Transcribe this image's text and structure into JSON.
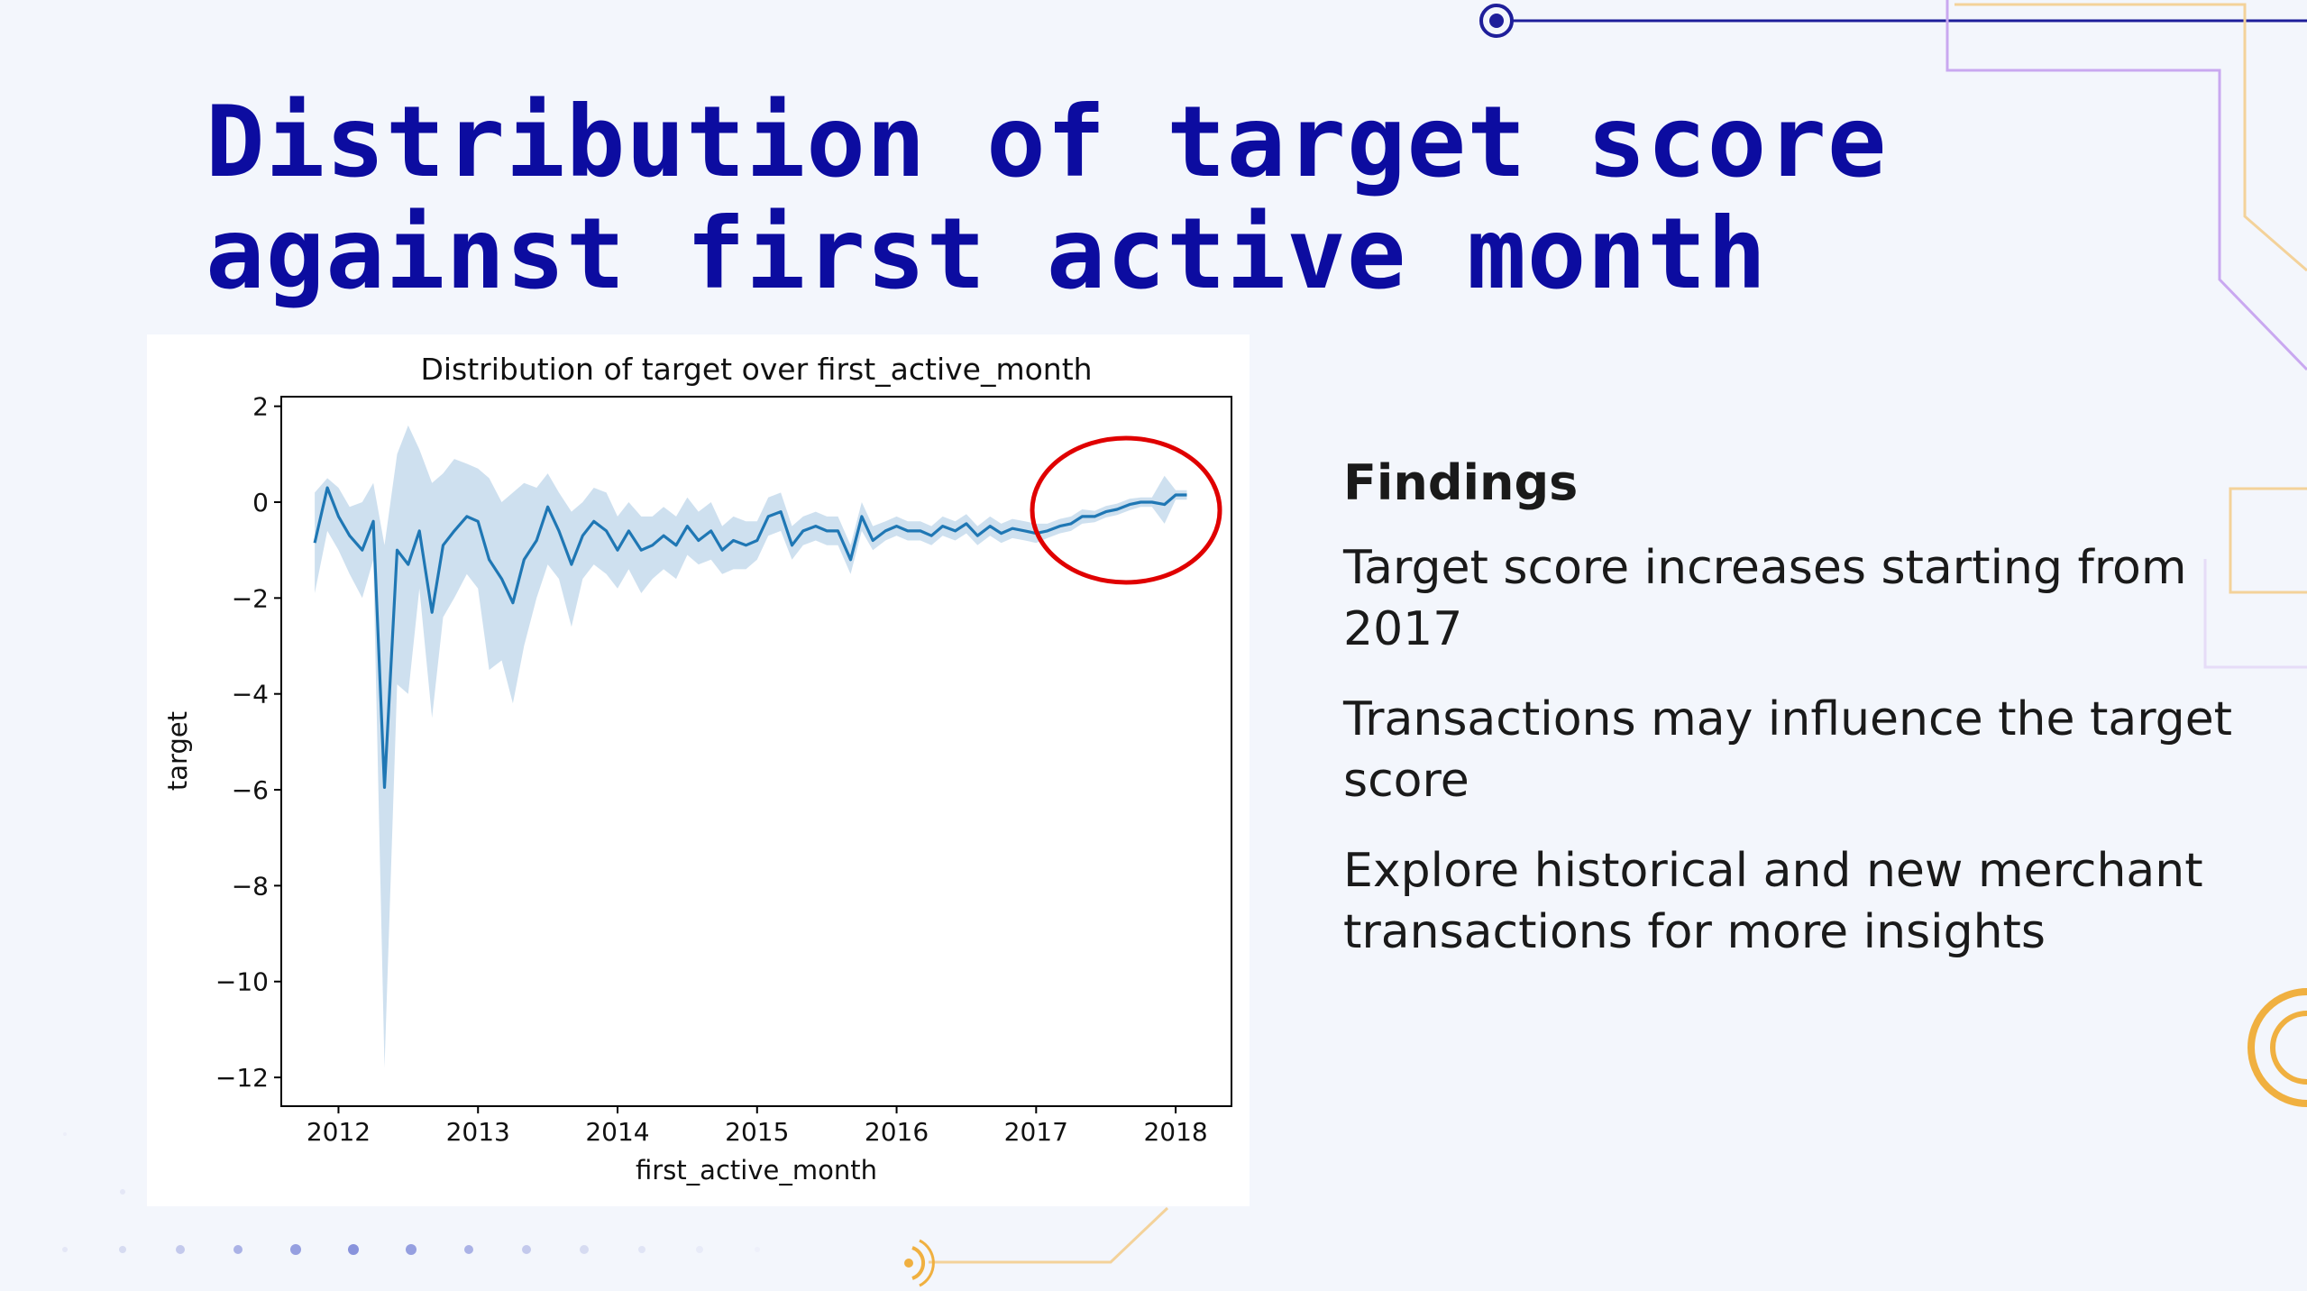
{
  "slide": {
    "title_lines": [
      "Distribution of target score",
      "against first active month"
    ]
  },
  "findings": {
    "heading": "Findings",
    "items": [
      "Target score increases starting from 2017",
      "Transactions may influence the target score",
      "Explore historical and new merchant transactions for more insights"
    ]
  },
  "colors": {
    "title": "#0c0ca0",
    "background": "#f3f6fc",
    "line": "#1f77b4",
    "band": "#c5dbec",
    "highlight_circle": "#e00000",
    "accent_orange": "#f0b040",
    "accent_purple": "#c9a8f0",
    "accent_navy": "#1e1e9a"
  },
  "chart_data": {
    "type": "line",
    "title": "Distribution of target over first_active_month",
    "xlabel": "first_active_month",
    "ylabel": "target",
    "xlim": [
      2011.59,
      2018.4
    ],
    "ylim": [
      -12.6,
      2.2
    ],
    "x_ticks": [
      2012,
      2013,
      2014,
      2015,
      2016,
      2017,
      2018
    ],
    "y_ticks": [
      2,
      0,
      -2,
      -4,
      -6,
      -8,
      -10,
      -12
    ],
    "y_tick_labels": [
      "2",
      "0",
      "−2",
      "−4",
      "−6",
      "−8",
      "−10",
      "−12"
    ],
    "grid": false,
    "legend": "none",
    "annotation": "red circle highlighting 2017–2018 increase",
    "series": [
      {
        "points": [
          [
            2011.83,
            -0.85,
            -1.9,
            0.2
          ],
          [
            2011.92,
            0.3,
            -0.6,
            0.5
          ],
          [
            2012.0,
            -0.3,
            -1.0,
            0.3
          ],
          [
            2012.08,
            -0.7,
            -1.5,
            -0.1
          ],
          [
            2012.17,
            -1.0,
            -2.0,
            0.0
          ],
          [
            2012.25,
            -0.4,
            -1.2,
            0.4
          ],
          [
            2012.33,
            -5.95,
            -11.8,
            -0.9
          ],
          [
            2012.42,
            -1.0,
            -3.8,
            1.0
          ],
          [
            2012.5,
            -1.3,
            -4.0,
            1.6
          ],
          [
            2012.58,
            -0.6,
            -1.8,
            1.1
          ],
          [
            2012.67,
            -2.3,
            -4.5,
            0.4
          ],
          [
            2012.75,
            -0.9,
            -2.4,
            0.6
          ],
          [
            2012.83,
            -0.6,
            -2.0,
            0.9
          ],
          [
            2012.92,
            -0.3,
            -1.5,
            0.8
          ],
          [
            2013.0,
            -0.4,
            -1.8,
            0.7
          ],
          [
            2013.08,
            -1.2,
            -3.5,
            0.5
          ],
          [
            2013.17,
            -1.6,
            -3.3,
            0.0
          ],
          [
            2013.25,
            -2.1,
            -4.2,
            0.2
          ],
          [
            2013.33,
            -1.2,
            -3.0,
            0.4
          ],
          [
            2013.42,
            -0.8,
            -2.0,
            0.3
          ],
          [
            2013.5,
            -0.1,
            -1.3,
            0.6
          ],
          [
            2013.58,
            -0.6,
            -1.6,
            0.2
          ],
          [
            2013.67,
            -1.3,
            -2.6,
            -0.2
          ],
          [
            2013.75,
            -0.7,
            -1.6,
            0.0
          ],
          [
            2013.83,
            -0.4,
            -1.3,
            0.3
          ],
          [
            2013.92,
            -0.6,
            -1.5,
            0.2
          ],
          [
            2014.0,
            -1.0,
            -1.8,
            -0.3
          ],
          [
            2014.08,
            -0.6,
            -1.4,
            0.0
          ],
          [
            2014.17,
            -1.0,
            -1.9,
            -0.3
          ],
          [
            2014.25,
            -0.9,
            -1.6,
            -0.3
          ],
          [
            2014.33,
            -0.7,
            -1.4,
            -0.1
          ],
          [
            2014.42,
            -0.9,
            -1.6,
            -0.3
          ],
          [
            2014.5,
            -0.5,
            -1.1,
            0.1
          ],
          [
            2014.58,
            -0.8,
            -1.3,
            -0.2
          ],
          [
            2014.67,
            -0.6,
            -1.2,
            0.0
          ],
          [
            2014.75,
            -1.0,
            -1.5,
            -0.5
          ],
          [
            2014.83,
            -0.8,
            -1.4,
            -0.3
          ],
          [
            2014.92,
            -0.9,
            -1.4,
            -0.4
          ],
          [
            2015.0,
            -0.8,
            -1.2,
            -0.4
          ],
          [
            2015.08,
            -0.3,
            -0.7,
            0.1
          ],
          [
            2015.17,
            -0.2,
            -0.6,
            0.2
          ],
          [
            2015.25,
            -0.9,
            -1.2,
            -0.5
          ],
          [
            2015.33,
            -0.6,
            -0.9,
            -0.3
          ],
          [
            2015.42,
            -0.5,
            -0.8,
            -0.2
          ],
          [
            2015.5,
            -0.6,
            -0.9,
            -0.3
          ],
          [
            2015.58,
            -0.6,
            -0.9,
            -0.3
          ],
          [
            2015.67,
            -1.2,
            -1.5,
            -0.9
          ],
          [
            2015.75,
            -0.3,
            -0.6,
            0.0
          ],
          [
            2015.83,
            -0.8,
            -1.0,
            -0.5
          ],
          [
            2015.92,
            -0.6,
            -0.8,
            -0.4
          ],
          [
            2016.0,
            -0.5,
            -0.7,
            -0.3
          ],
          [
            2016.08,
            -0.6,
            -0.8,
            -0.4
          ],
          [
            2016.17,
            -0.6,
            -0.8,
            -0.4
          ],
          [
            2016.25,
            -0.7,
            -0.9,
            -0.5
          ],
          [
            2016.33,
            -0.5,
            -0.7,
            -0.3
          ],
          [
            2016.42,
            -0.6,
            -0.8,
            -0.4
          ],
          [
            2016.5,
            -0.45,
            -0.65,
            -0.25
          ],
          [
            2016.58,
            -0.7,
            -0.9,
            -0.5
          ],
          [
            2016.67,
            -0.5,
            -0.7,
            -0.3
          ],
          [
            2016.75,
            -0.65,
            -0.85,
            -0.45
          ],
          [
            2016.83,
            -0.55,
            -0.75,
            -0.35
          ],
          [
            2016.92,
            -0.6,
            -0.8,
            -0.4
          ],
          [
            2017.0,
            -0.65,
            -0.85,
            -0.45
          ],
          [
            2017.08,
            -0.6,
            -0.75,
            -0.45
          ],
          [
            2017.17,
            -0.5,
            -0.65,
            -0.35
          ],
          [
            2017.25,
            -0.45,
            -0.6,
            -0.3
          ],
          [
            2017.33,
            -0.3,
            -0.45,
            -0.15
          ],
          [
            2017.42,
            -0.3,
            -0.42,
            -0.18
          ],
          [
            2017.5,
            -0.2,
            -0.32,
            -0.08
          ],
          [
            2017.58,
            -0.15,
            -0.27,
            -0.03
          ],
          [
            2017.67,
            -0.05,
            -0.17,
            0.07
          ],
          [
            2017.75,
            0.0,
            -0.1,
            0.1
          ],
          [
            2017.83,
            0.0,
            -0.1,
            0.1
          ],
          [
            2017.92,
            -0.05,
            -0.45,
            0.55
          ],
          [
            2018.0,
            0.15,
            0.05,
            0.25
          ],
          [
            2018.08,
            0.15,
            0.05,
            0.25
          ]
        ],
        "point_format": [
          "x",
          "y",
          "ci_low",
          "ci_high"
        ]
      }
    ]
  }
}
